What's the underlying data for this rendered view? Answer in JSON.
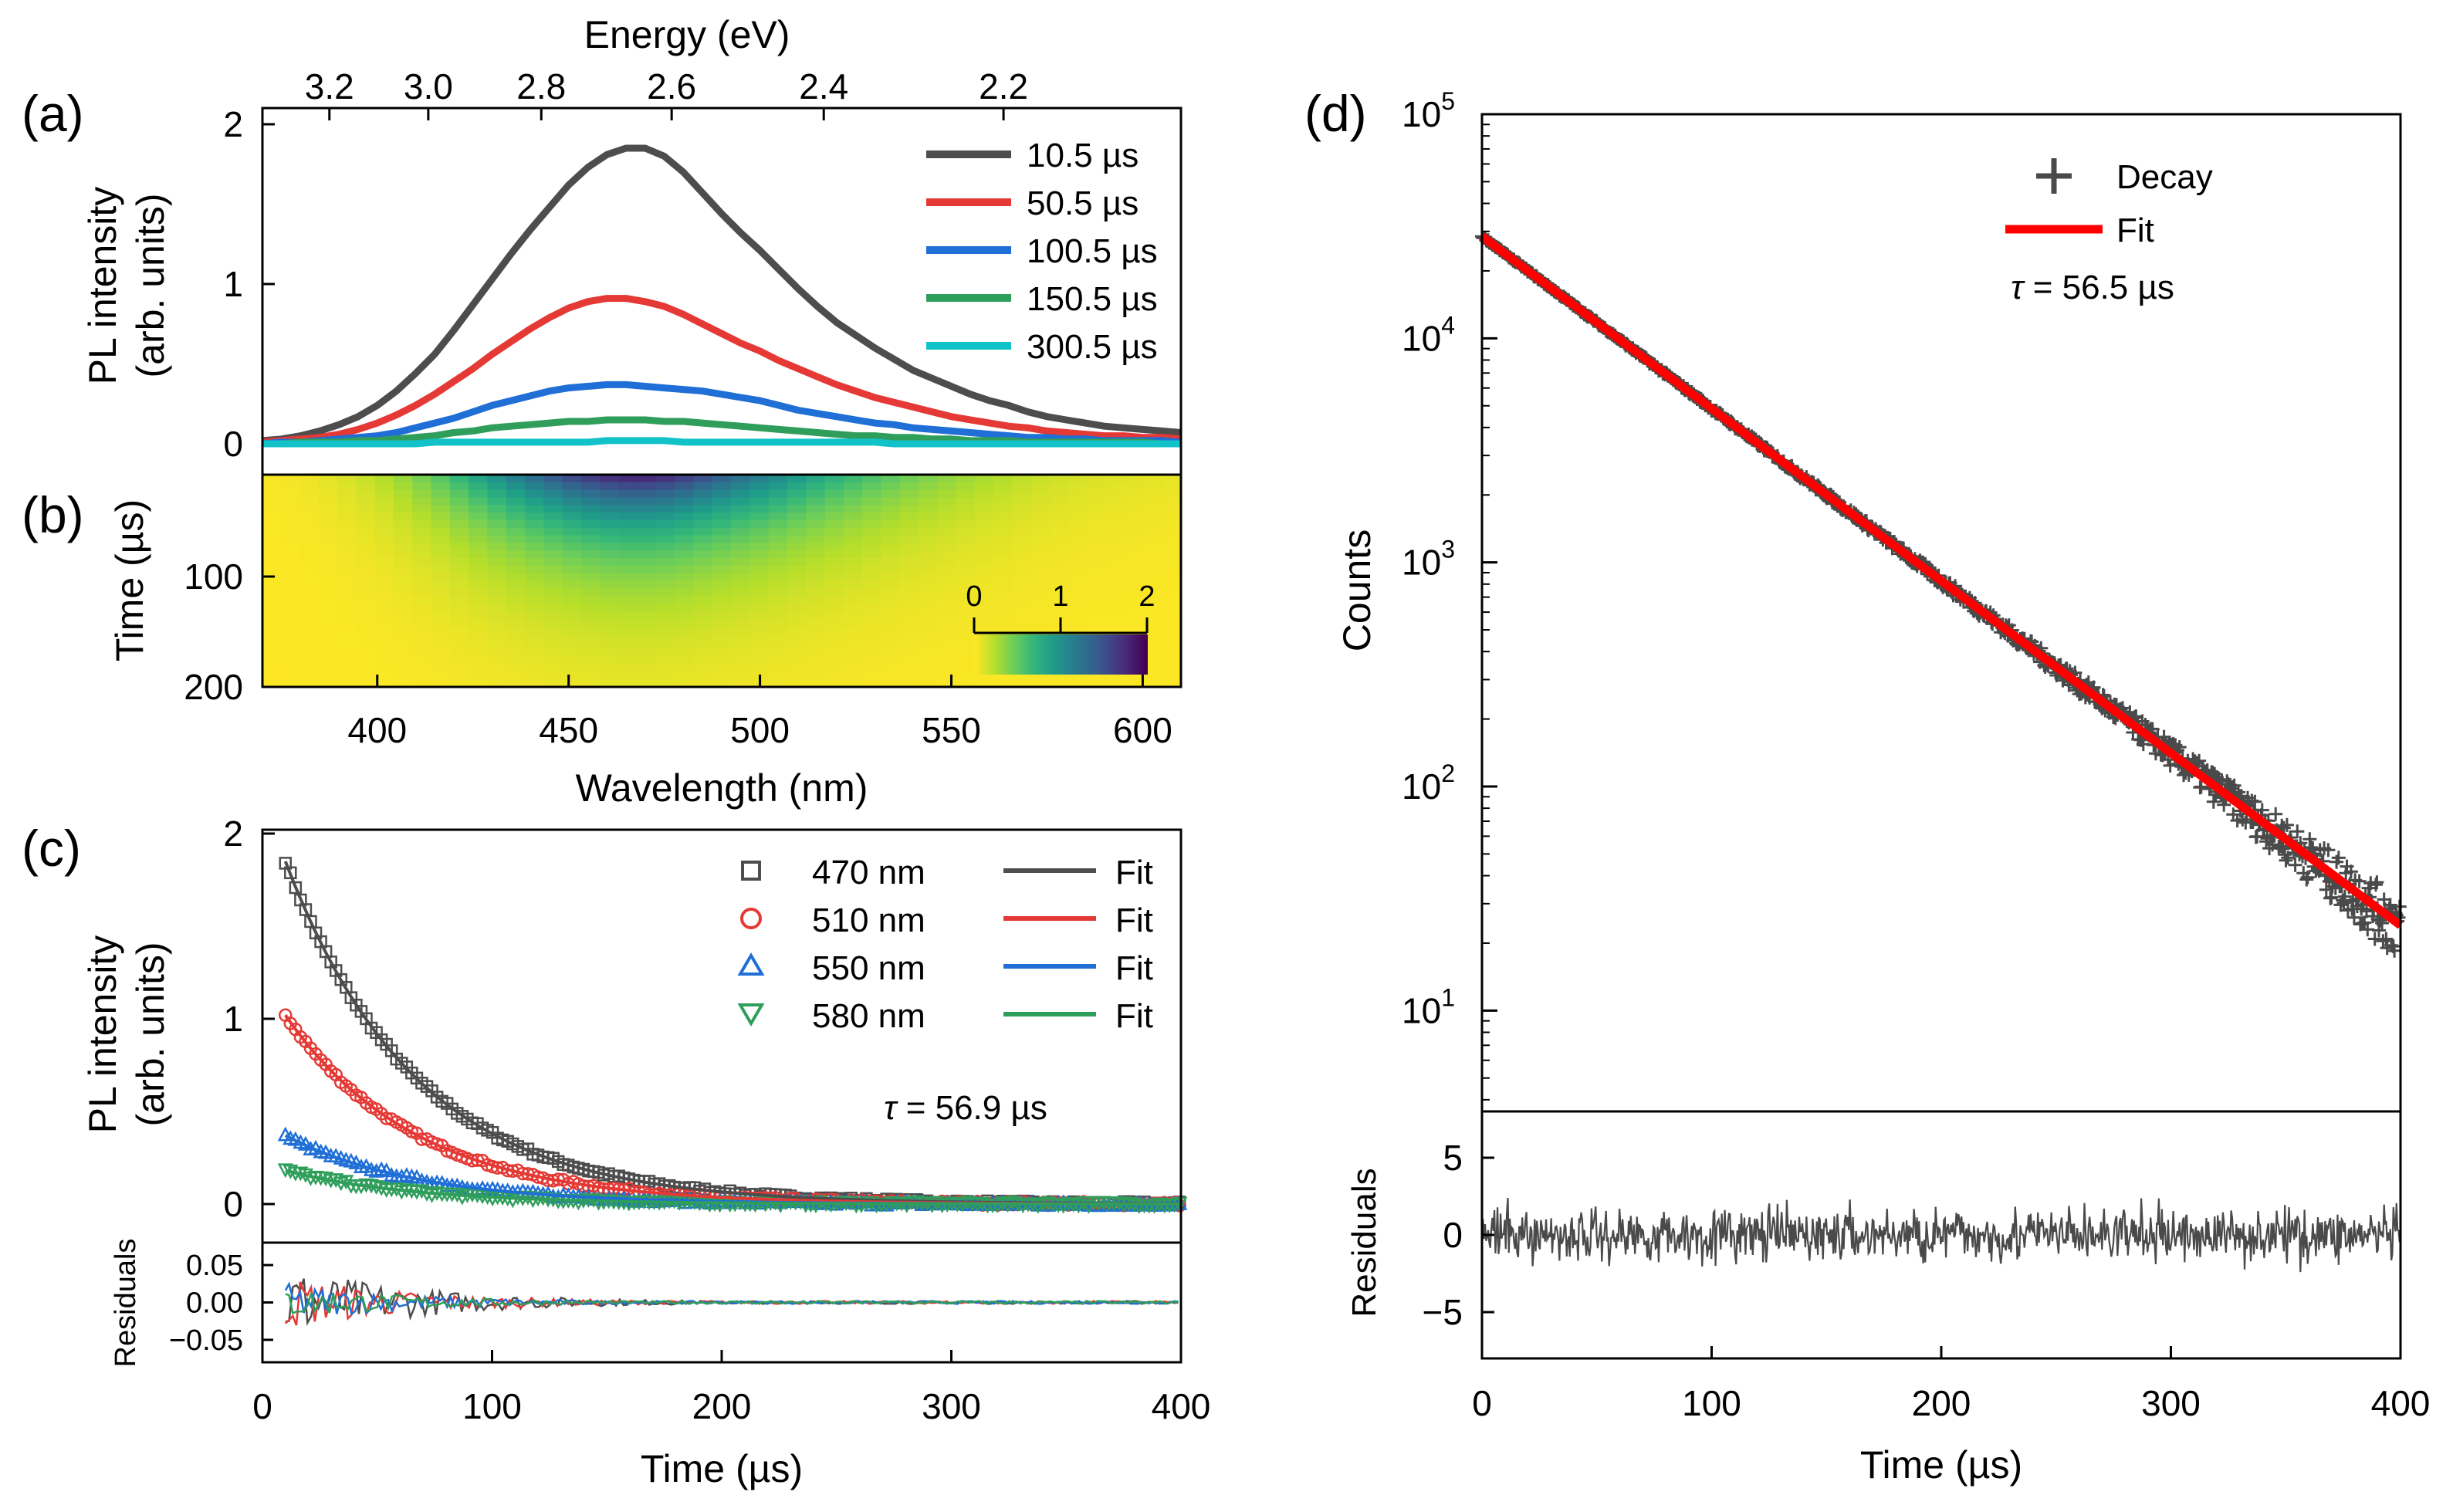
{
  "figure": {
    "colors": {
      "black": "#4d4d4d",
      "red": "#e53935",
      "blue": "#1f6fd6",
      "green": "#2f9e5b",
      "cyan": "#12c2c9",
      "decay": "#4a4a4a",
      "fit": "#ff0000"
    }
  },
  "chart_data": [
    {
      "panel": "(a)",
      "type": "line",
      "title": "",
      "xlabel": "Wavelength (nm)",
      "ylabel_line1": "PL intensity",
      "ylabel_line2": "(arb. units)",
      "top_axis_label": "Energy (eV)",
      "top_axis_ticks": [
        "3.2",
        "3.0",
        "2.8",
        "2.6",
        "2.4",
        "2.2"
      ],
      "top_axis_tick_values": [
        3.2,
        3.0,
        2.8,
        2.6,
        2.4,
        2.2
      ],
      "xlim": [
        370,
        610
      ],
      "ylim": [
        0,
        2
      ],
      "yticks": [
        "0",
        "1",
        "2"
      ],
      "x": [
        370,
        375,
        380,
        385,
        390,
        395,
        400,
        405,
        410,
        415,
        420,
        425,
        430,
        435,
        440,
        445,
        450,
        455,
        460,
        465,
        470,
        475,
        480,
        485,
        490,
        495,
        500,
        505,
        510,
        515,
        520,
        525,
        530,
        535,
        540,
        545,
        550,
        555,
        560,
        565,
        570,
        575,
        580,
        585,
        590,
        595,
        600,
        605,
        610
      ],
      "series": [
        {
          "name": "10.5 µs",
          "color_key": "black",
          "values": [
            0.02,
            0.03,
            0.05,
            0.08,
            0.12,
            0.17,
            0.24,
            0.33,
            0.44,
            0.56,
            0.71,
            0.87,
            1.03,
            1.19,
            1.34,
            1.48,
            1.62,
            1.73,
            1.81,
            1.85,
            1.85,
            1.8,
            1.7,
            1.57,
            1.44,
            1.32,
            1.21,
            1.09,
            0.97,
            0.86,
            0.76,
            0.68,
            0.6,
            0.53,
            0.46,
            0.41,
            0.36,
            0.31,
            0.27,
            0.24,
            0.2,
            0.17,
            0.15,
            0.13,
            0.11,
            0.1,
            0.09,
            0.08,
            0.07
          ]
        },
        {
          "name": "50.5 µs",
          "color_key": "red",
          "values": [
            0.01,
            0.02,
            0.03,
            0.04,
            0.06,
            0.09,
            0.13,
            0.18,
            0.24,
            0.31,
            0.39,
            0.47,
            0.56,
            0.64,
            0.72,
            0.79,
            0.85,
            0.89,
            0.91,
            0.91,
            0.89,
            0.86,
            0.81,
            0.75,
            0.69,
            0.63,
            0.58,
            0.52,
            0.47,
            0.42,
            0.37,
            0.33,
            0.29,
            0.26,
            0.23,
            0.2,
            0.17,
            0.15,
            0.13,
            0.11,
            0.1,
            0.08,
            0.07,
            0.06,
            0.05,
            0.05,
            0.04,
            0.04,
            0.03
          ]
        },
        {
          "name": "100.5 µs",
          "color_key": "blue",
          "values": [
            0.0,
            0.01,
            0.01,
            0.02,
            0.03,
            0.04,
            0.05,
            0.07,
            0.1,
            0.13,
            0.16,
            0.2,
            0.24,
            0.27,
            0.3,
            0.33,
            0.35,
            0.36,
            0.37,
            0.37,
            0.36,
            0.35,
            0.34,
            0.33,
            0.31,
            0.29,
            0.27,
            0.24,
            0.21,
            0.19,
            0.17,
            0.15,
            0.13,
            0.12,
            0.1,
            0.09,
            0.08,
            0.07,
            0.06,
            0.05,
            0.04,
            0.04,
            0.03,
            0.03,
            0.02,
            0.02,
            0.02,
            0.02,
            0.01
          ]
        },
        {
          "name": "150.5 µs",
          "color_key": "green",
          "values": [
            0.0,
            0.0,
            0.01,
            0.01,
            0.01,
            0.02,
            0.02,
            0.03,
            0.04,
            0.05,
            0.07,
            0.08,
            0.1,
            0.11,
            0.12,
            0.13,
            0.14,
            0.14,
            0.15,
            0.15,
            0.15,
            0.14,
            0.14,
            0.13,
            0.12,
            0.11,
            0.1,
            0.09,
            0.08,
            0.07,
            0.06,
            0.05,
            0.05,
            0.04,
            0.04,
            0.03,
            0.03,
            0.02,
            0.02,
            0.02,
            0.01,
            0.01,
            0.01,
            0.01,
            0.01,
            0.01,
            0.01,
            0.0,
            0.0
          ]
        },
        {
          "name": "300.5 µs",
          "color_key": "cyan",
          "values": [
            0.0,
            0.0,
            0.0,
            0.0,
            0.0,
            0.0,
            0.0,
            0.0,
            0.0,
            0.01,
            0.01,
            0.01,
            0.01,
            0.01,
            0.01,
            0.01,
            0.01,
            0.01,
            0.02,
            0.02,
            0.02,
            0.02,
            0.01,
            0.01,
            0.01,
            0.01,
            0.01,
            0.01,
            0.01,
            0.01,
            0.01,
            0.01,
            0.01,
            0.0,
            0.0,
            0.0,
            0.0,
            0.0,
            0.0,
            0.0,
            0.0,
            0.0,
            0.0,
            0.0,
            0.0,
            0.0,
            0.0,
            0.0,
            0.0
          ]
        }
      ]
    },
    {
      "panel": "(b)",
      "type": "heatmap",
      "xlabel": "Wavelength (nm)",
      "ylabel": "Time (µs)",
      "xlim": [
        370,
        610
      ],
      "ylim": [
        10,
        200
      ],
      "xticks": [
        "400",
        "450",
        "500",
        "550",
        "600"
      ],
      "yticks": [
        "100",
        "200"
      ],
      "value_source": "I(λ, t) = peak(λ) · exp(-(t - 10) / 56.9)",
      "colorbar_ticks": [
        "0",
        "1",
        "2"
      ],
      "colorbar_range": [
        0,
        2
      ],
      "colormap": "viridis_r"
    },
    {
      "panel": "(c)",
      "type": "scatter",
      "xlabel": "Time (µs)",
      "ylabel_line1": "PL intensity",
      "ylabel_line2": "(arb. units)",
      "xlim": [
        0,
        400
      ],
      "ylim": [
        0,
        2
      ],
      "xticks": [
        "0",
        "100",
        "200",
        "300",
        "400"
      ],
      "yticks": [
        "0",
        "1",
        "2"
      ],
      "tau_label": "τ",
      "tau_text": " = 56.9 µs",
      "tau_us": 56.9,
      "t_start_us": 10,
      "series": [
        {
          "name": "470 nm",
          "fit_label": "Fit",
          "marker": "square",
          "color_key": "black",
          "amplitude": 1.85
        },
        {
          "name": "510 nm",
          "fit_label": "Fit",
          "marker": "circle",
          "color_key": "red",
          "amplitude": 1.02
        },
        {
          "name": "550 nm",
          "fit_label": "Fit",
          "marker": "triangle-up",
          "color_key": "blue",
          "amplitude": 0.37
        },
        {
          "name": "580 nm",
          "fit_label": "Fit",
          "marker": "triangle-down",
          "color_key": "green",
          "amplitude": 0.18
        }
      ],
      "residuals": {
        "ylabel": "Residuals",
        "ylim": [
          -0.08,
          0.08
        ],
        "yticks": [
          "0.05",
          "0.00",
          "−0.05"
        ],
        "ytick_values": [
          0.05,
          0.0,
          -0.05
        ],
        "max_amplitude": 0.05
      }
    },
    {
      "panel": "(d)",
      "type": "scatter",
      "xlabel": "Time (µs)",
      "ylabel": "Counts",
      "xlim": [
        0,
        400
      ],
      "yscale": "log",
      "ylim_exponents": [
        0.55,
        5
      ],
      "xticks": [
        "0",
        "100",
        "200",
        "300",
        "400"
      ],
      "ytick_exponents": [
        1,
        2,
        3,
        4,
        5
      ],
      "ytick_base": "10",
      "series": [
        {
          "name": "Decay",
          "marker": "plus",
          "color_key": "decay"
        },
        {
          "name": "Fit",
          "marker": "line",
          "color_key": "fit"
        }
      ],
      "fit_initial_counts": 28500,
      "tau_label": "τ",
      "tau_text": " = 56.5 µs",
      "tau_us": 56.5,
      "residuals": {
        "ylabel": "Residuals",
        "ylim": [
          -8,
          8
        ],
        "yticks": [
          "5",
          "0",
          "−5"
        ],
        "ytick_values": [
          5,
          0,
          -5
        ],
        "max_amplitude": 3.5
      }
    }
  ]
}
